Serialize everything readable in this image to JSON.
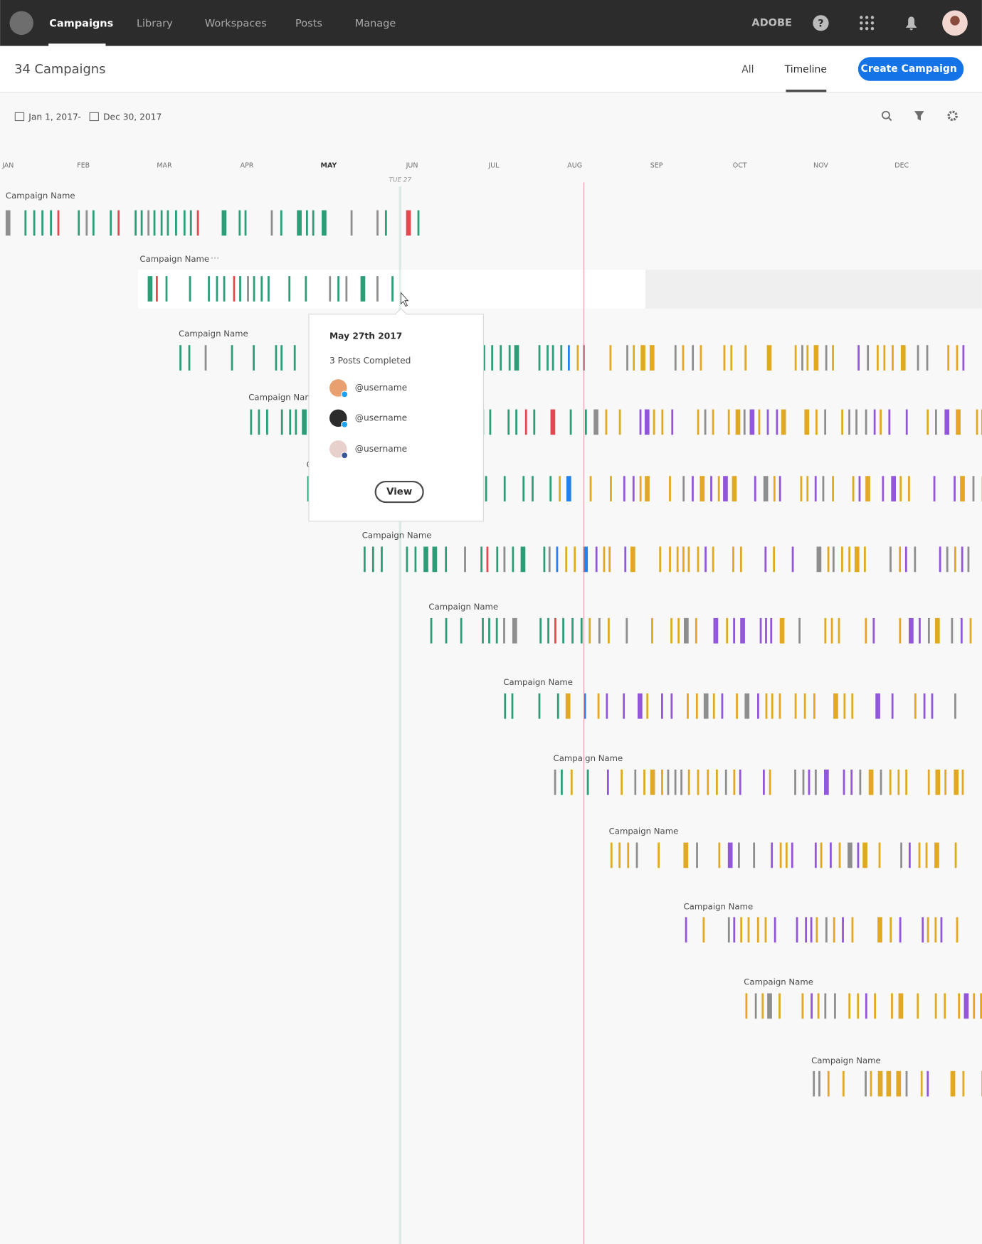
{
  "nav": {
    "items": [
      "Campaigns",
      "Library",
      "Workspaces",
      "Posts",
      "Manage"
    ],
    "brand": "ADOBE"
  },
  "header": {
    "title": "34 Campaigns",
    "tabs": [
      "All",
      "Timeline"
    ],
    "button": "Create Campaign"
  },
  "toolbar": {
    "start_date": "Jan 1, 2017",
    "separator": "-",
    "end_date": "Dec 30, 2017"
  },
  "timeline": {
    "months": [
      "JAN",
      "FEB",
      "MAR",
      "APR",
      "MAY",
      "JUN",
      "JUL",
      "AUG",
      "SEP",
      "OCT",
      "NOV",
      "DEC"
    ],
    "marker": "TUE 27",
    "campaigns": [
      "Campaign Name",
      "Campaign Name",
      "Campaign Name",
      "Campaign Name",
      "Campaign Name",
      "Campaign Name",
      "Campaign Name",
      "Campaign Name",
      "Campaign Name",
      "Campaign Name",
      "Campaign Name",
      "Campaign Name",
      "Campaign Name"
    ]
  },
  "tooltip": {
    "date": "May 27th 2017",
    "summary": "3 Posts Completed",
    "users": [
      "@username",
      "@username",
      "@username"
    ],
    "button": "View"
  }
}
